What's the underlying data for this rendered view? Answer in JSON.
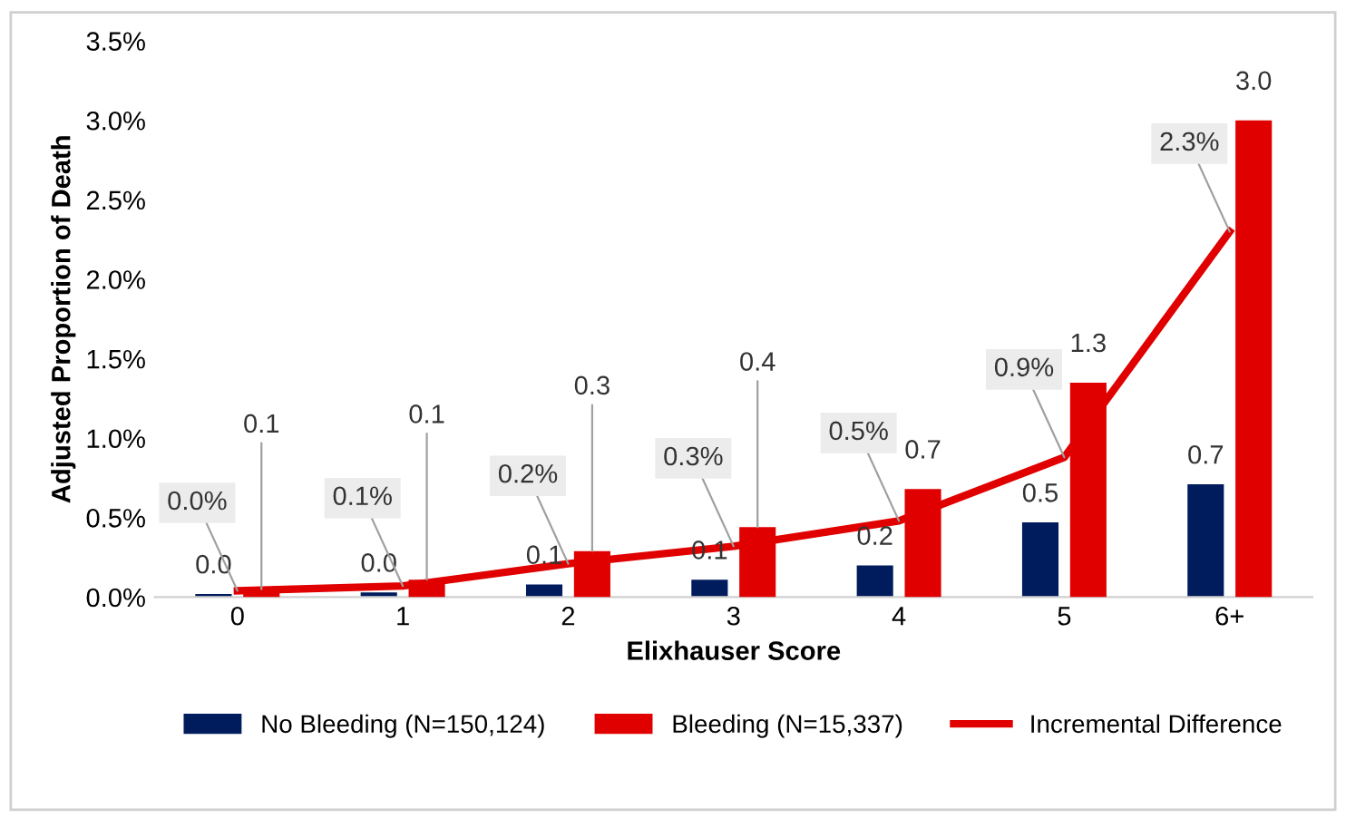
{
  "chart_data": {
    "type": "bar",
    "xlabel": "Elixhauser Score",
    "ylabel": "Adjusted Proportion of Death",
    "categories": [
      "0",
      "1",
      "2",
      "3",
      "4",
      "5",
      "6+"
    ],
    "series": [
      {
        "name": "No Bleeding (N=150,124)",
        "color": "#001c5c",
        "values": [
          0.02,
          0.03,
          0.08,
          0.11,
          0.2,
          0.47,
          0.71
        ],
        "value_labels": [
          "0.0",
          "0.0",
          "0.1",
          "0.1",
          "0.2",
          "0.5",
          "0.7"
        ]
      },
      {
        "name": "Bleeding (N=15,337)",
        "color": "#e00000",
        "values": [
          0.05,
          0.11,
          0.29,
          0.44,
          0.68,
          1.35,
          3.0
        ],
        "value_labels": [
          "0.1",
          "0.1",
          "0.3",
          "0.4",
          "0.7",
          "1.3",
          "3.0"
        ]
      },
      {
        "name": "Incremental Difference",
        "type": "line",
        "color": "#e00000",
        "values": [
          0.04,
          0.07,
          0.21,
          0.32,
          0.48,
          0.88,
          2.3
        ],
        "value_labels": [
          "0.0%",
          "0.1%",
          "0.2%",
          "0.3%",
          "0.5%",
          "0.9%",
          "2.3%"
        ]
      }
    ],
    "ylim": [
      0,
      3.5
    ],
    "yticks": [
      {
        "value": 0,
        "label": "0.0%"
      },
      {
        "value": 0.5,
        "label": "0.5%"
      },
      {
        "value": 1,
        "label": "1.0%"
      },
      {
        "value": 1.5,
        "label": "1.5%"
      },
      {
        "value": 2,
        "label": "2.0%"
      },
      {
        "value": 2.5,
        "label": "2.5%"
      },
      {
        "value": 3,
        "label": "3.0%"
      },
      {
        "value": 3.5,
        "label": "3.5%"
      }
    ],
    "grid": false,
    "legend": "bottom",
    "line_style": "solid",
    "marker": "none"
  }
}
